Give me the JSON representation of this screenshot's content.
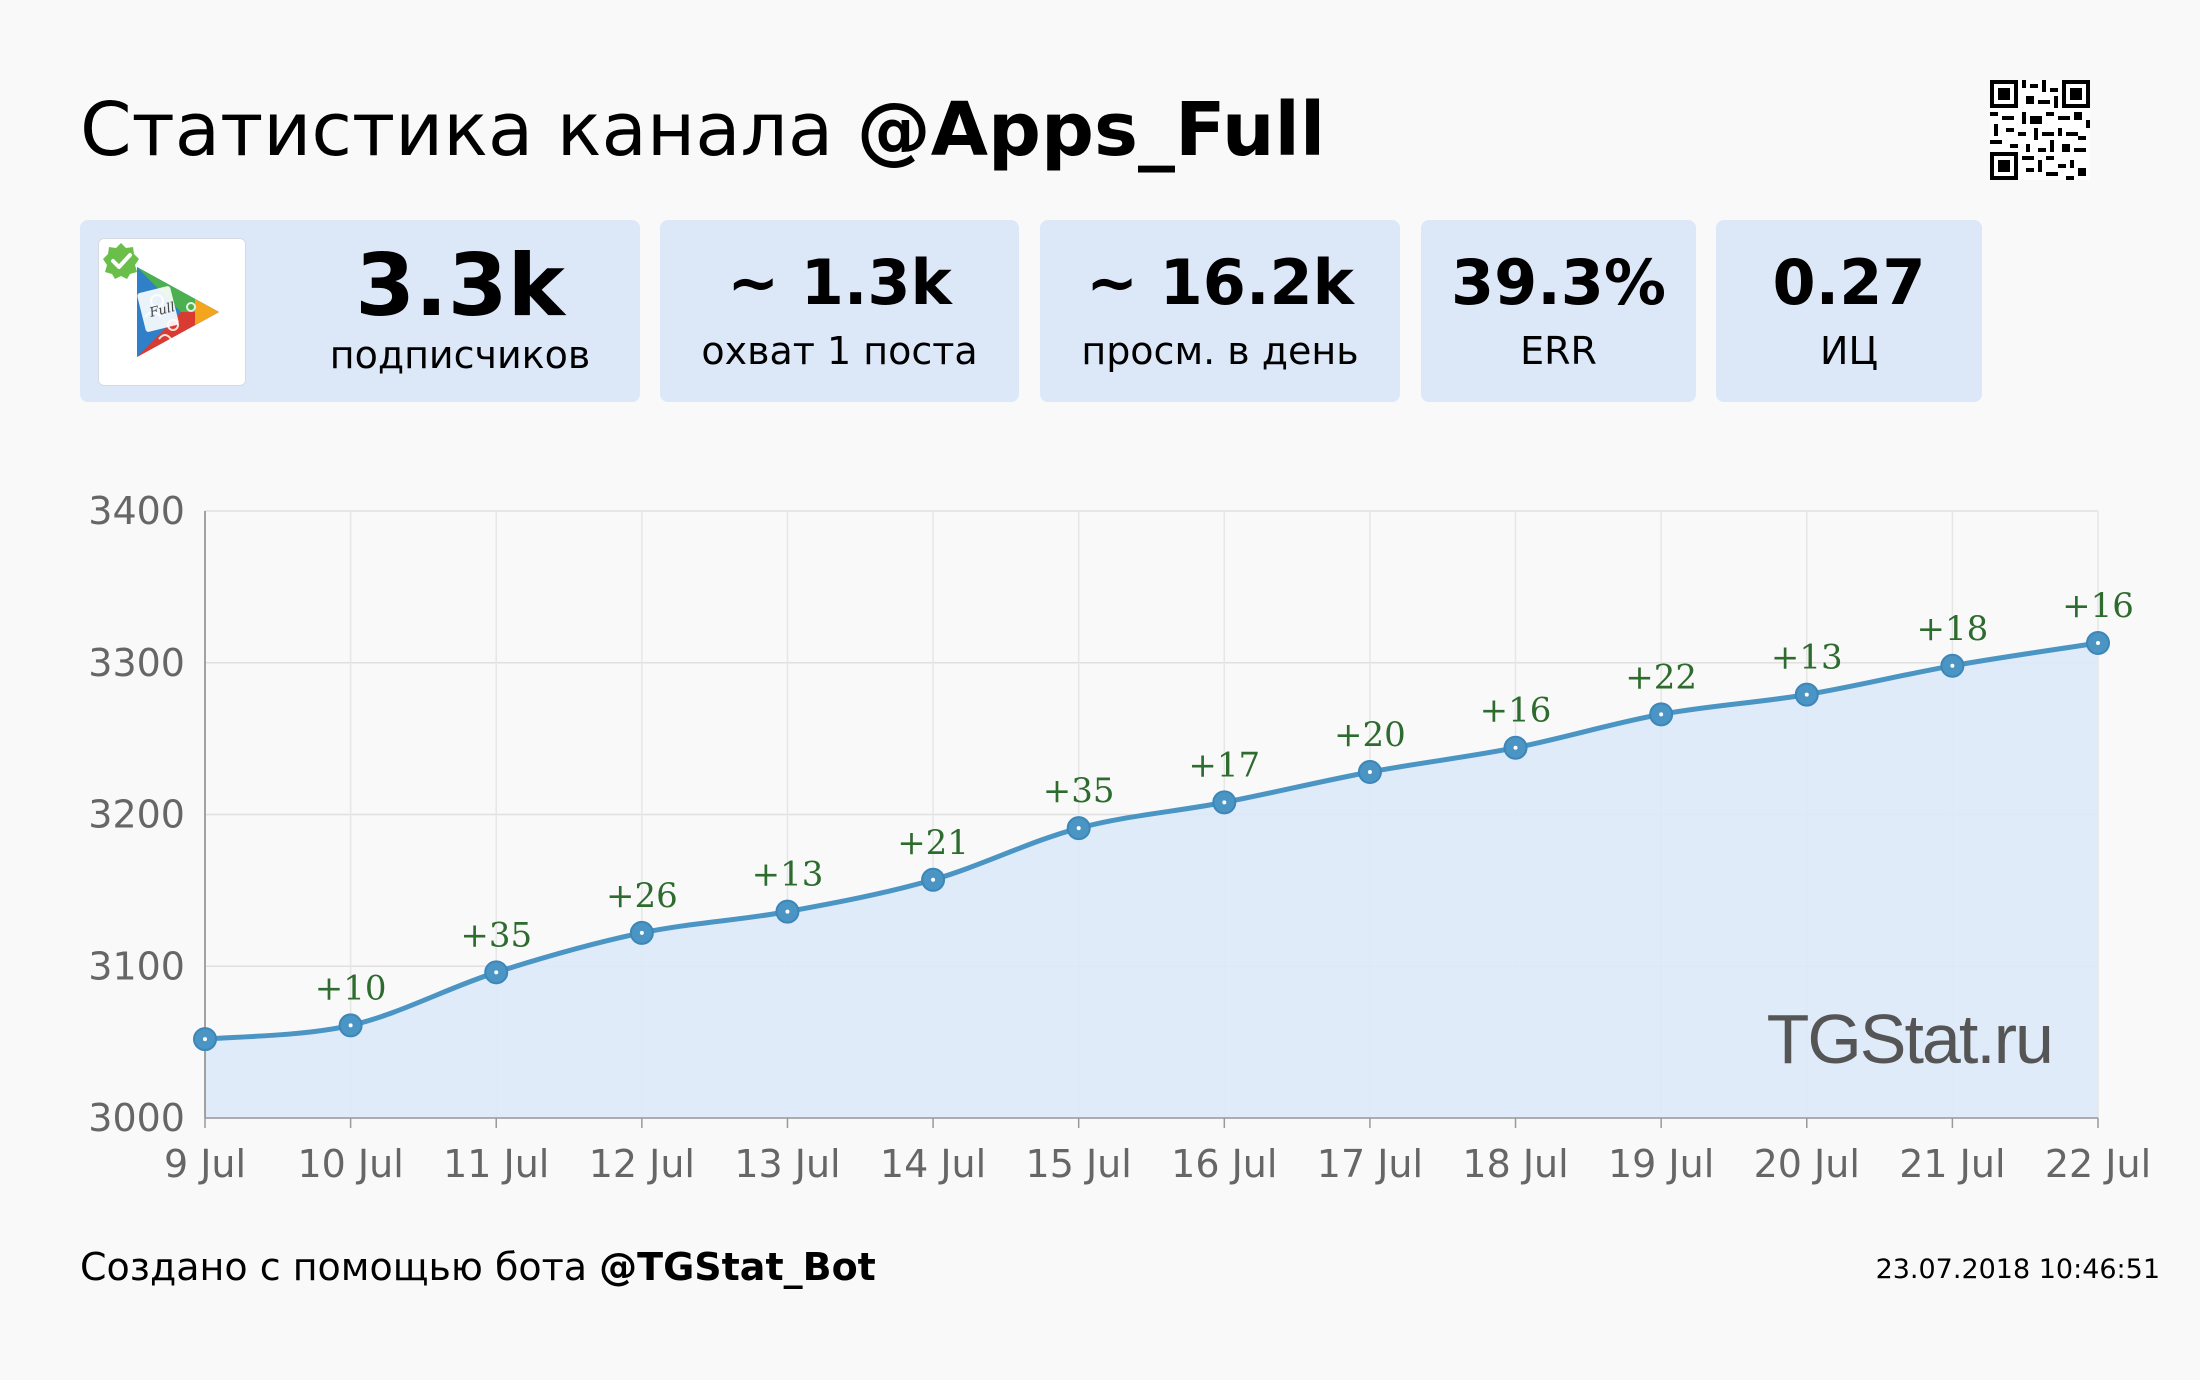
{
  "header": {
    "title_prefix": "Статистика канала",
    "channel": "@Apps_Full"
  },
  "stats": [
    {
      "value": "3.3k",
      "label": "подписчиков"
    },
    {
      "value": "~ 1.3k",
      "label": "охват 1 поста"
    },
    {
      "value": "~ 16.2k",
      "label": "просм. в день"
    },
    {
      "value": "39.3%",
      "label": "ERR"
    },
    {
      "value": "0.27",
      "label": "ИЦ"
    }
  ],
  "icons": {
    "avatar": "play-store-logo",
    "verified": "verified-check-icon",
    "qr": "qr-code"
  },
  "colors": {
    "card_bg": "#dce7f7",
    "line": "#4a95c4",
    "area": "#dde9f9",
    "delta_label": "#2e6b2e",
    "verified": "#6abf4b"
  },
  "chart_data": {
    "type": "area",
    "title": "",
    "xlabel": "",
    "ylabel": "",
    "categories": [
      "9 Jul",
      "10 Jul",
      "11 Jul",
      "12 Jul",
      "13 Jul",
      "14 Jul",
      "15 Jul",
      "16 Jul",
      "17 Jul",
      "18 Jul",
      "19 Jul",
      "20 Jul",
      "21 Jul",
      "22 Jul"
    ],
    "values": [
      3052,
      3061,
      3096,
      3122,
      3136,
      3157,
      3191,
      3208,
      3228,
      3244,
      3266,
      3279,
      3298,
      3313
    ],
    "annotations": [
      "",
      "+10",
      "+35",
      "+26",
      "+13",
      "+21",
      "+35",
      "+17",
      "+20",
      "+16",
      "+22",
      "+13",
      "+18",
      "+16"
    ],
    "ylim": [
      3000,
      3400
    ],
    "yticks": [
      3000,
      3100,
      3200,
      3300,
      3400
    ],
    "grid": true,
    "watermark": "TGStat.ru"
  },
  "footer": {
    "created_with": "Создано с помощью бота",
    "bot": "@TGStat_Bot",
    "timestamp": "23.07.2018 10:46:51"
  }
}
